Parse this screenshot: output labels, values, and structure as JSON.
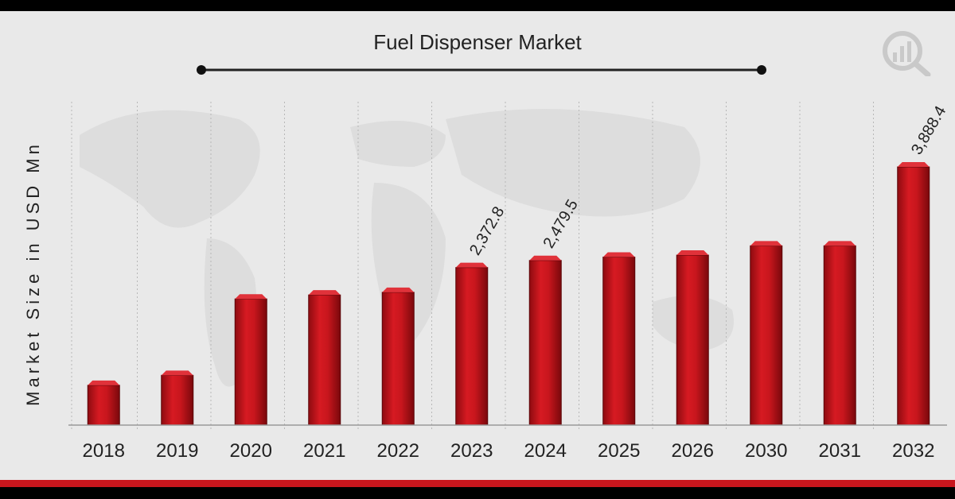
{
  "chart_data": {
    "type": "bar",
    "title": "Fuel Dispenser Market",
    "xlabel": "",
    "ylabel": "Market Size in USD Mn",
    "categories": [
      "2018",
      "2019",
      "2020",
      "2021",
      "2022",
      "2023",
      "2024",
      "2025",
      "2026",
      "2030",
      "2031",
      "2032"
    ],
    "values": [
      600,
      750,
      1900,
      1960,
      2000,
      2372.8,
      2479.5,
      2530,
      2560,
      2700,
      2700,
      3888.4
    ],
    "data_labels": [
      "",
      "",
      "",
      "",
      "",
      "2,372.8",
      "2,479.5",
      "",
      "",
      "",
      "",
      "3,888.4"
    ],
    "grid": "vertical dotted",
    "colors": {
      "bar": "#c8161d",
      "bar_dark": "#8e0b10",
      "background": "#e9e9e9",
      "frame": "#000000",
      "accent_line": "#c8161d"
    }
  },
  "logo": {
    "icon": "chart-magnifier-logo-icon"
  }
}
